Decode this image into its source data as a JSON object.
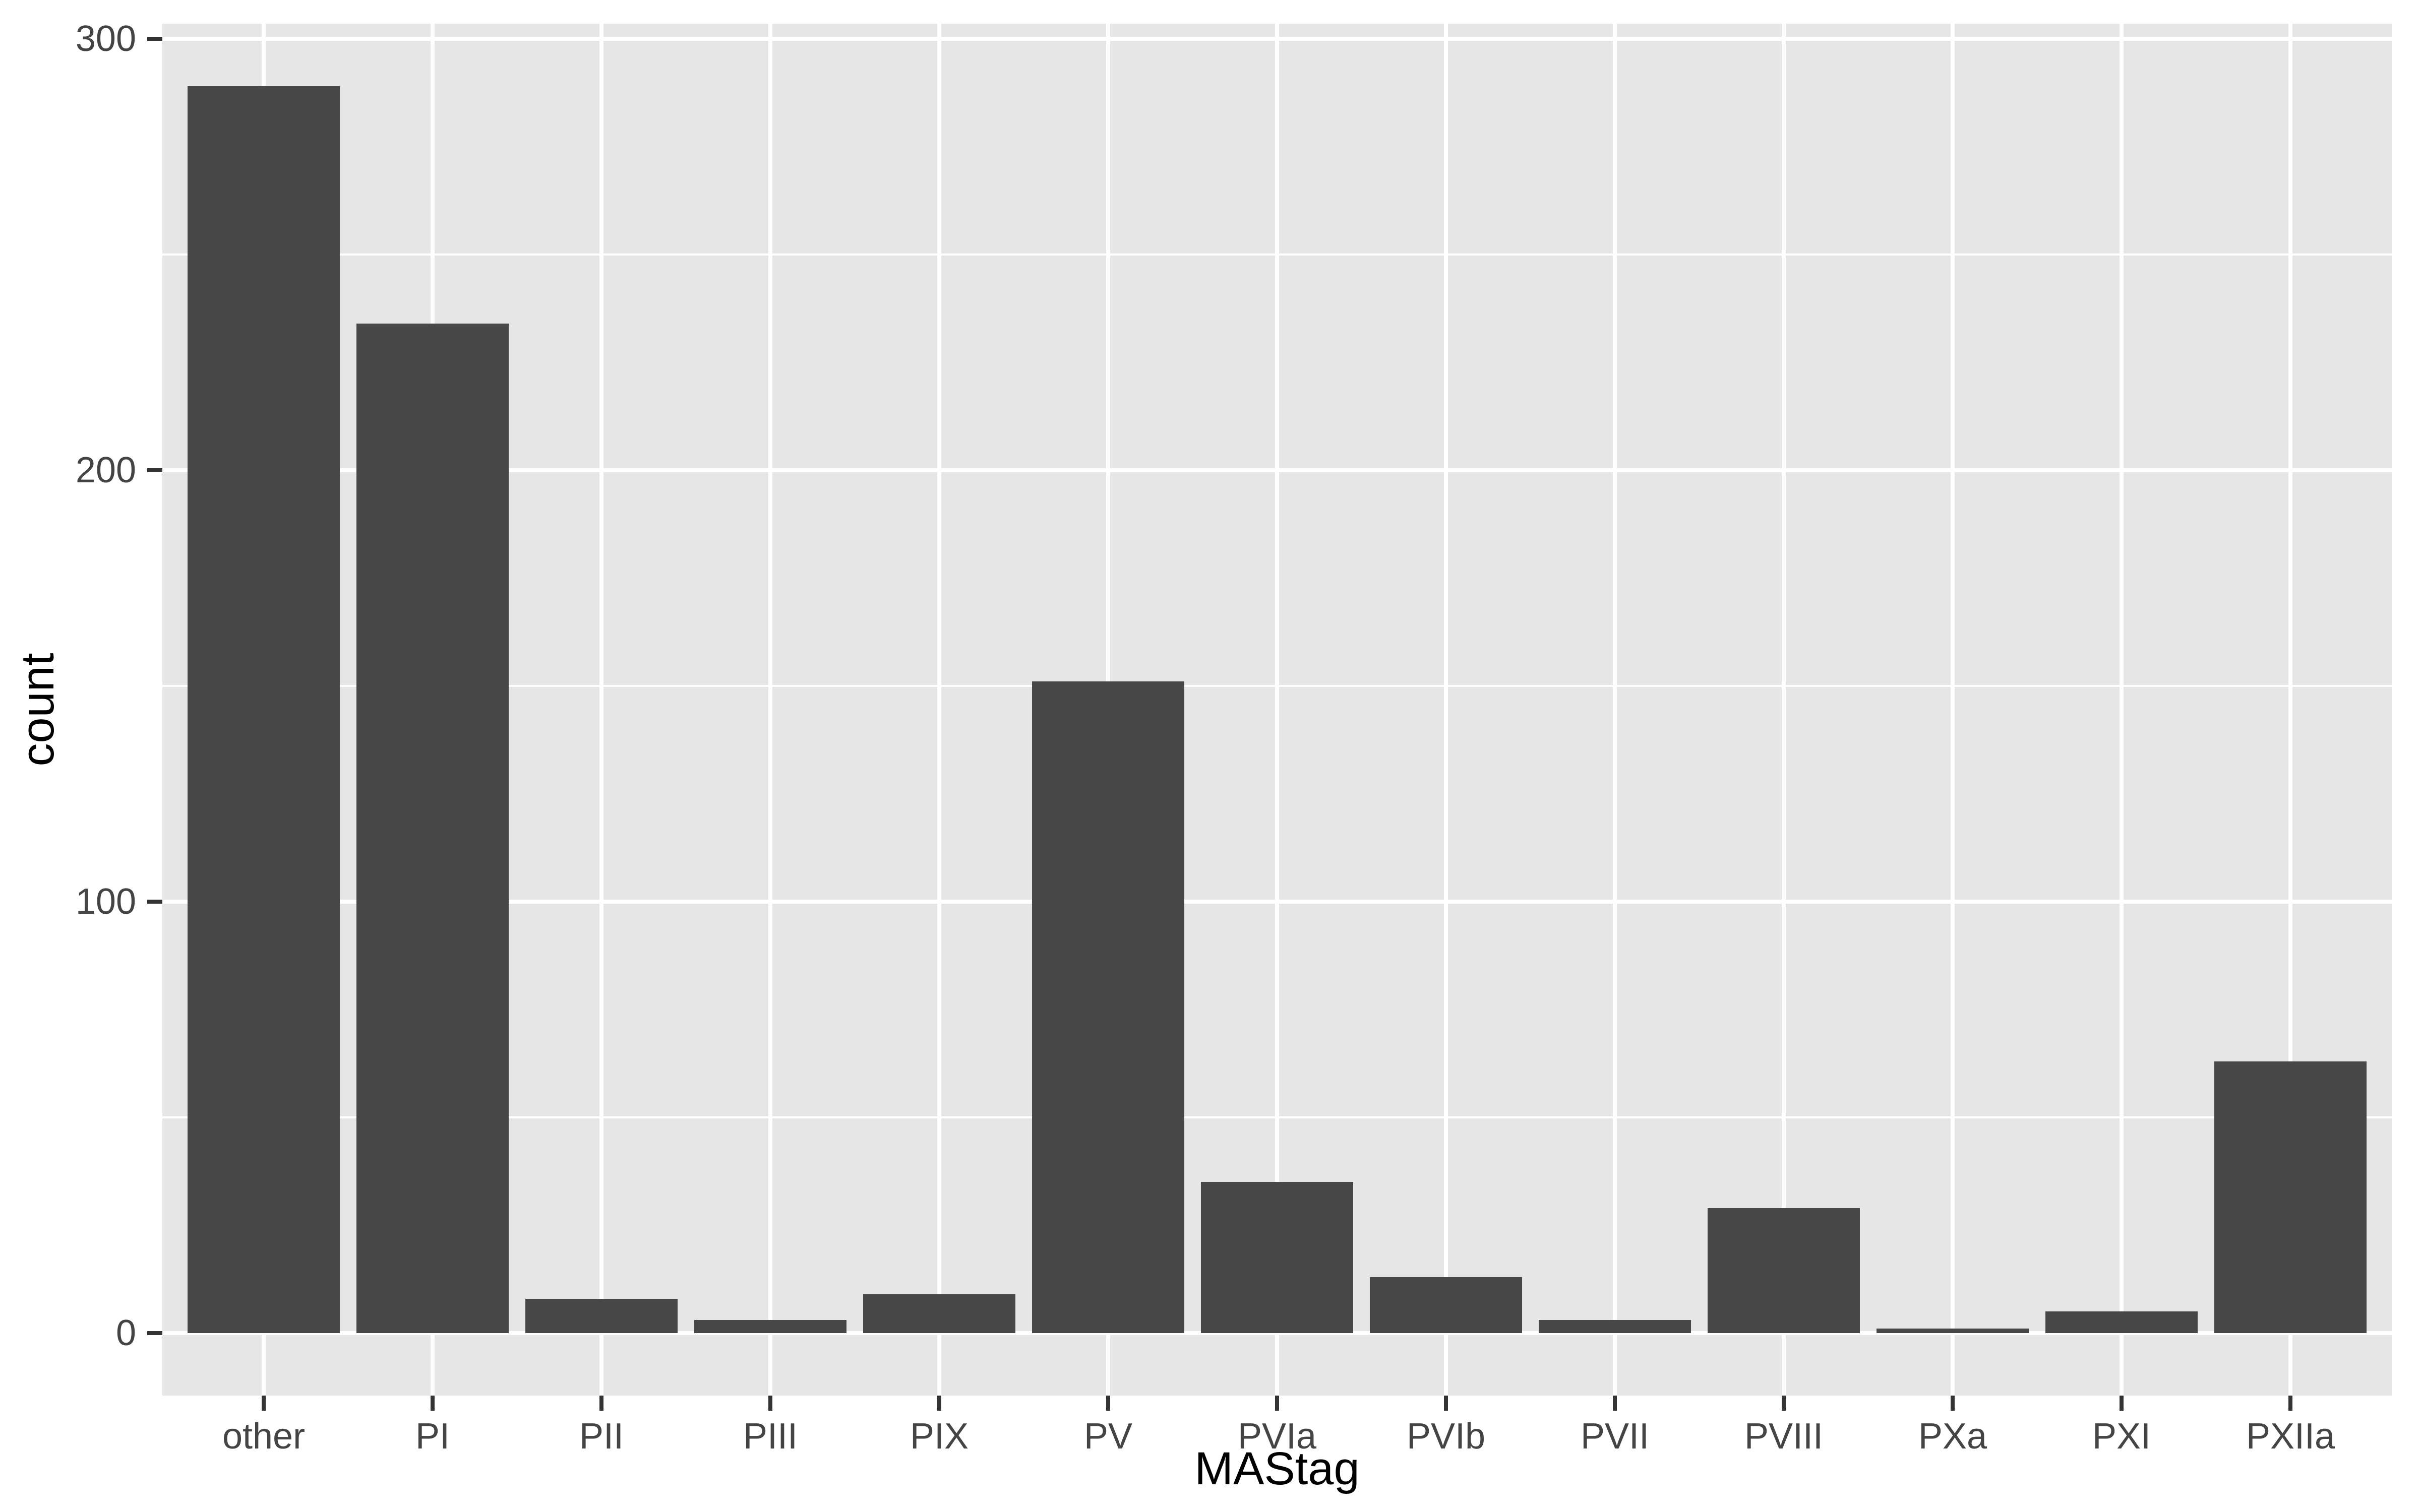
{
  "figure": {
    "background_color": "#FFFFFF",
    "panel_background_color": "#E6E6E6",
    "grid_color": "#FFFFFF",
    "bar_fill_color": "#474747",
    "tick_mark_color": "#333333",
    "axis_text_color": "#444444",
    "axis_title_color": "#000000"
  },
  "chart_data": {
    "type": "bar",
    "title": "",
    "categories": [
      "other",
      "PI",
      "PII",
      "PIII",
      "PIX",
      "PV",
      "PVIa",
      "PVIb",
      "PVII",
      "PVIII",
      "PXa",
      "PXI",
      "PXIIa"
    ],
    "values": [
      289,
      234,
      8,
      3,
      9,
      151,
      35,
      13,
      3,
      29,
      1,
      5,
      63
    ],
    "xlabel": "MAStag",
    "ylabel": "count",
    "ytick_labels": [
      "0",
      "100",
      "200",
      "300"
    ],
    "yticks": [
      0,
      100,
      200,
      300
    ],
    "minor_yticks": [
      50,
      150,
      250
    ],
    "ylim": [
      -14,
      304
    ],
    "grid": "major-and-minor-horizontal, major-vertical-at-categories",
    "legend": "none"
  }
}
